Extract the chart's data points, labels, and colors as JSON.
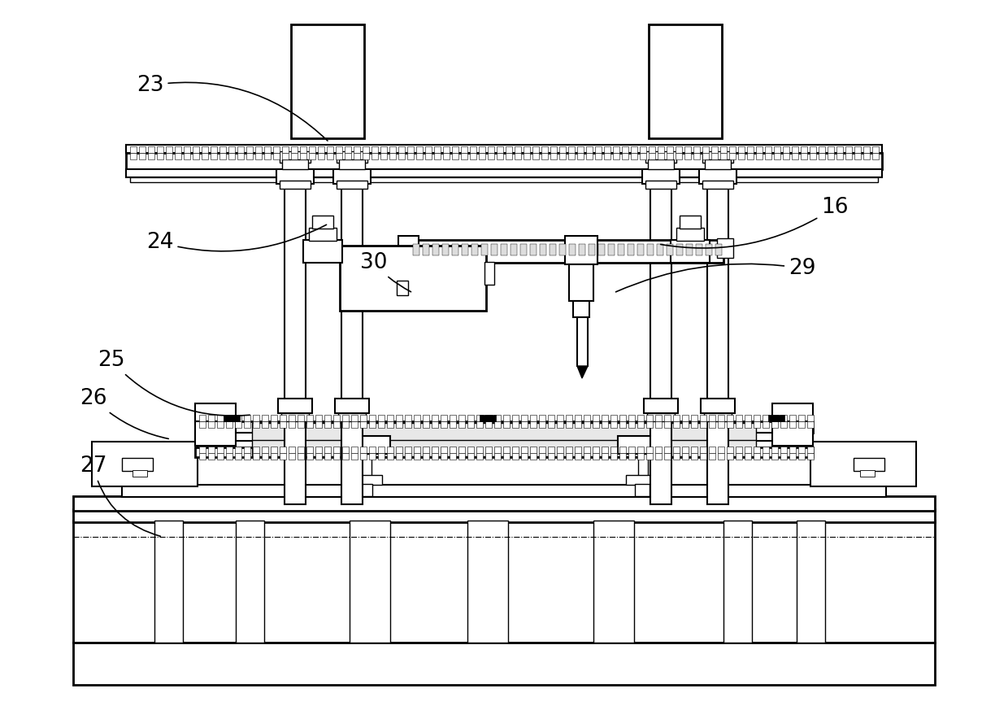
{
  "bg_color": "#ffffff",
  "lc": "#000000",
  "fig_width": 12.4,
  "fig_height": 8.68,
  "dpi": 100
}
